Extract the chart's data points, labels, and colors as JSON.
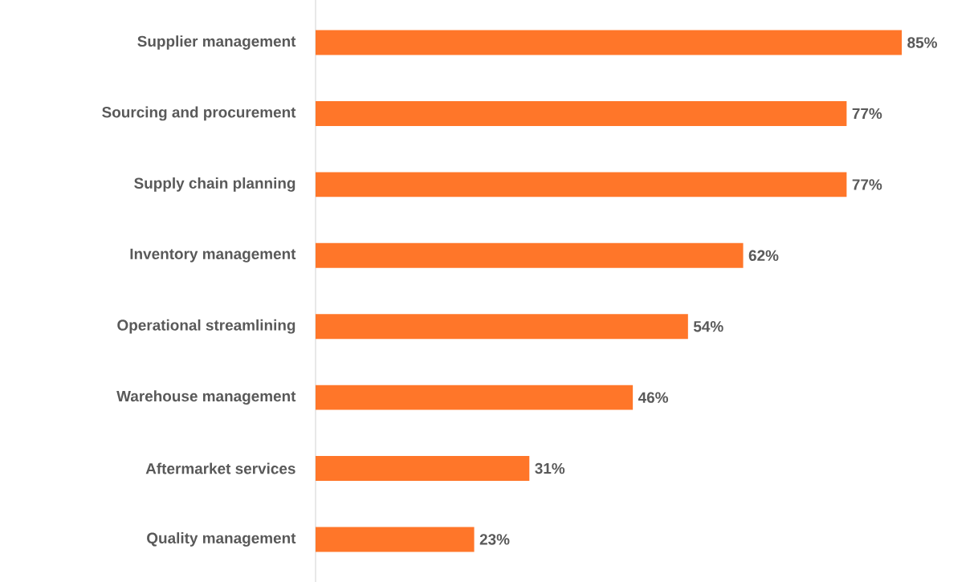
{
  "chart_data": {
    "type": "bar",
    "orientation": "horizontal",
    "categories": [
      "Supplier management",
      "Sourcing and procurement",
      "Supply chain planning",
      "Inventory management",
      "Operational streamlining",
      "Warehouse management",
      "Aftermarket services",
      "Quality management"
    ],
    "values": [
      85,
      77,
      77,
      62,
      54,
      46,
      31,
      23
    ],
    "value_labels": [
      "85%",
      "77%",
      "77%",
      "62%",
      "54%",
      "46%",
      "31%",
      "23%"
    ],
    "color": "#ff7629"
  }
}
